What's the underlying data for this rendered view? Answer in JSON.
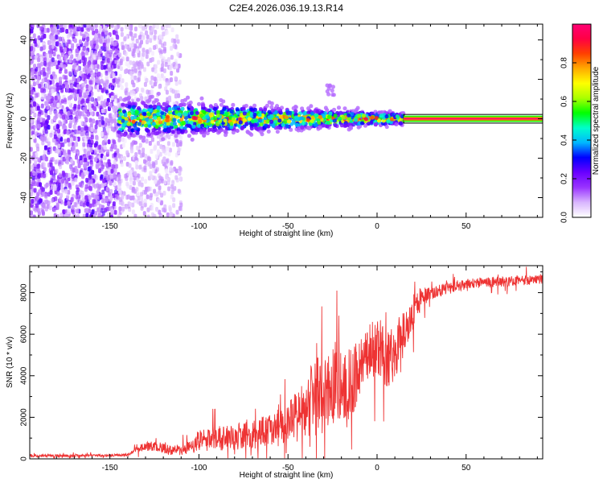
{
  "title": "C2E4.2026.036.19.13.R14",
  "chart_data": [
    {
      "type": "heatmap",
      "title": "C2E4.2026.036.19.13.R14",
      "xlabel": "Height of straight line (km)",
      "ylabel": "Frequency (Hz)",
      "xlim": [
        -195,
        93
      ],
      "ylim": [
        -50,
        48
      ],
      "xticks": [
        -150,
        -100,
        -50,
        0,
        50
      ],
      "yticks": [
        -40,
        -20,
        0,
        20,
        40
      ],
      "colorbar": {
        "label": "Normalized spectral amplitude",
        "range": [
          0,
          1
        ],
        "ticks": [
          0.0,
          0.2,
          0.4,
          0.6,
          0.8
        ],
        "tick_labels": [
          "0.0",
          "0.2",
          "0.4",
          "0.6",
          "0.8"
        ],
        "colormap": [
          "#ffffff",
          "#d8b4fe",
          "#9933ff",
          "#6a00ff",
          "#0000ff",
          "#00b7ff",
          "#00ffcc",
          "#00ff00",
          "#aaff00",
          "#ffff00",
          "#ffaa00",
          "#ff4000",
          "#ff0044",
          "#ff0077"
        ]
      },
      "regions": [
        {
          "description": "broadband noise",
          "x_range": [
            -195,
            -145
          ],
          "freq_range": [
            -50,
            48
          ],
          "amplitude": 0.15
        },
        {
          "description": "scattered noise",
          "x_range": [
            -145,
            -110
          ],
          "freq_range": [
            -50,
            48
          ],
          "amplitude": 0.05
        },
        {
          "description": "Doppler line",
          "x_range": [
            -145,
            15
          ],
          "freq_center": 0,
          "amplitude_range": [
            0.2,
            0.9
          ]
        },
        {
          "description": "clean carrier",
          "x_range": [
            15,
            93
          ],
          "freq_center": 0,
          "amplitude": 1.0
        }
      ]
    },
    {
      "type": "line",
      "xlabel": "Height of straight line (km)",
      "ylabel": "SNR (10 * v/v)",
      "xlim": [
        -195,
        93
      ],
      "ylim": [
        0,
        9300
      ],
      "xticks": [
        -150,
        -100,
        -50,
        0,
        50
      ],
      "yticks": [
        0,
        2000,
        4000,
        6000,
        8000
      ],
      "color": "#ee3333",
      "series": [
        {
          "name": "SNR",
          "x": [
            -195,
            -180,
            -165,
            -150,
            -140,
            -135,
            -130,
            -125,
            -120,
            -115,
            -110,
            -105,
            -100,
            -95,
            -90,
            -85,
            -80,
            -75,
            -70,
            -65,
            -60,
            -55,
            -50,
            -45,
            -40,
            -35,
            -30,
            -25,
            -20,
            -15,
            -10,
            -5,
            0,
            5,
            10,
            15,
            20,
            25,
            30,
            35,
            40,
            45,
            50,
            55,
            60,
            65,
            70,
            75,
            80,
            85,
            90,
            93
          ],
          "values": [
            150,
            160,
            160,
            170,
            200,
            450,
            600,
            600,
            500,
            400,
            450,
            550,
            900,
            1000,
            1000,
            1000,
            1000,
            1200,
            1200,
            1300,
            1400,
            1500,
            1700,
            2000,
            2500,
            3000,
            3200,
            3500,
            3500,
            3500,
            4500,
            5000,
            5500,
            5000,
            5000,
            6000,
            7000,
            7800,
            8000,
            8100,
            8200,
            8300,
            8400,
            8450,
            8500,
            8500,
            8500,
            8550,
            8600,
            8600,
            8650,
            8650
          ],
          "noise": [
            60,
            60,
            60,
            60,
            60,
            150,
            200,
            250,
            250,
            250,
            300,
            350,
            500,
            500,
            600,
            600,
            600,
            700,
            700,
            800,
            800,
            900,
            1000,
            1300,
            1600,
            2000,
            2000,
            1800,
            1800,
            1800,
            1500,
            1400,
            1400,
            1500,
            1500,
            1200,
            900,
            500,
            350,
            300,
            300,
            250,
            250,
            250,
            250,
            250,
            250,
            250,
            250,
            250,
            250,
            250
          ]
        }
      ]
    }
  ]
}
